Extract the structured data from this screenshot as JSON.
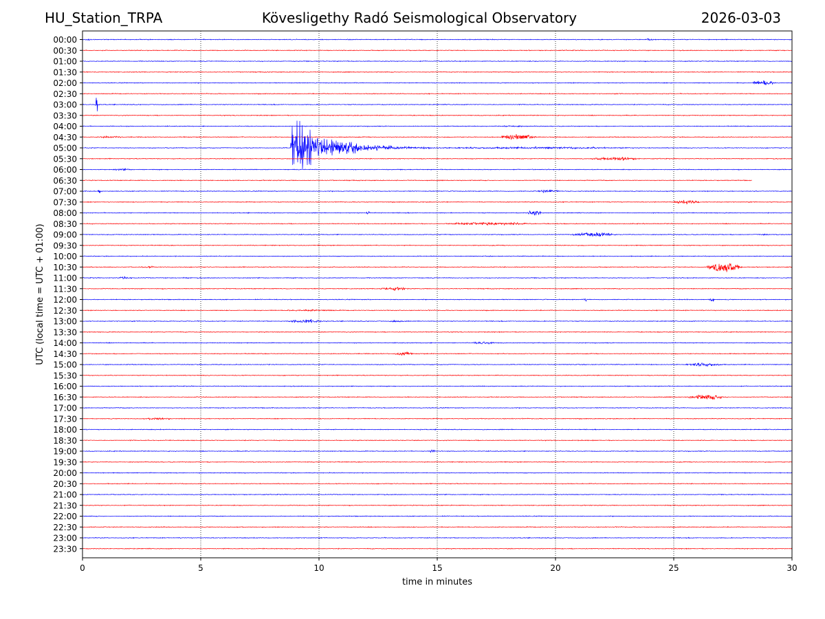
{
  "header": {
    "station": "HU_Station_TRPA",
    "observatory": "Kövesligethy Radó Seismological Observatory",
    "date": "2026-03-03"
  },
  "chart_data": {
    "type": "line",
    "title": "Kövesligethy Radó Seismological Observatory",
    "xlabel": "time in minutes",
    "ylabel": "UTC (local time = UTC + 01:00)",
    "xlim": [
      0,
      30
    ],
    "xticks": [
      0,
      5,
      10,
      15,
      20,
      25,
      30
    ],
    "grid": "vertical dotted at each x tick",
    "colors": {
      "even_rows": "#0000ff",
      "odd_rows": "#ff0000"
    },
    "rows": [
      "00:00",
      "00:30",
      "01:00",
      "01:30",
      "02:00",
      "02:30",
      "03:00",
      "03:30",
      "04:00",
      "04:30",
      "05:00",
      "05:30",
      "06:00",
      "06:30",
      "07:00",
      "07:30",
      "08:00",
      "08:30",
      "09:00",
      "09:30",
      "10:00",
      "10:30",
      "11:00",
      "11:30",
      "12:00",
      "12:30",
      "13:00",
      "13:30",
      "14:00",
      "14:30",
      "15:00",
      "15:30",
      "16:00",
      "16:30",
      "17:00",
      "17:30",
      "18:00",
      "18:30",
      "19:00",
      "19:30",
      "20:00",
      "20:30",
      "21:00",
      "21:30",
      "22:00",
      "22:30",
      "23:00",
      "23:30"
    ],
    "row_end_minutes": {
      "06:30": 28.3
    },
    "events": [
      {
        "row": "00:00",
        "start": 0.1,
        "duration": 0.5,
        "amp": 0.2
      },
      {
        "row": "00:00",
        "start": 23.8,
        "duration": 0.6,
        "amp": 0.18
      },
      {
        "row": "02:00",
        "start": 28.3,
        "duration": 1.7,
        "amp": 0.55
      },
      {
        "row": "03:00",
        "start": 0.55,
        "duration": 0.15,
        "amp": 2.5
      },
      {
        "row": "04:00",
        "start": 17.5,
        "duration": 2.0,
        "amp": 0.12
      },
      {
        "row": "04:30",
        "start": 17.7,
        "duration": 2.6,
        "amp": 0.6
      },
      {
        "row": "04:30",
        "start": 0.5,
        "duration": 2.0,
        "amp": 0.12
      },
      {
        "row": "05:00",
        "start": 8.8,
        "duration": 6.0,
        "amp": 9.0
      },
      {
        "row": "05:00",
        "start": 14.8,
        "duration": 15.0,
        "amp": 0.15
      },
      {
        "row": "05:30",
        "start": 21.5,
        "duration": 3.6,
        "amp": 0.35
      },
      {
        "row": "06:00",
        "start": 1.3,
        "duration": 1.4,
        "amp": 0.12
      },
      {
        "row": "07:00",
        "start": 0.65,
        "duration": 0.2,
        "amp": 0.5
      },
      {
        "row": "07:00",
        "start": 19.2,
        "duration": 1.8,
        "amp": 0.3
      },
      {
        "row": "07:30",
        "start": 25.0,
        "duration": 2.0,
        "amp": 0.35
      },
      {
        "row": "08:00",
        "start": 12.0,
        "duration": 0.25,
        "amp": 0.5
      },
      {
        "row": "08:00",
        "start": 18.8,
        "duration": 1.2,
        "amp": 0.45
      },
      {
        "row": "08:30",
        "start": 15.3,
        "duration": 6.8,
        "amp": 0.25
      },
      {
        "row": "09:00",
        "start": 20.7,
        "duration": 3.2,
        "amp": 0.45
      },
      {
        "row": "09:00",
        "start": 28.5,
        "duration": 1.0,
        "amp": 0.12
      },
      {
        "row": "10:30",
        "start": 26.4,
        "duration": 2.6,
        "amp": 1.2
      },
      {
        "row": "10:30",
        "start": 2.5,
        "duration": 1.0,
        "amp": 0.15
      },
      {
        "row": "11:00",
        "start": 1.5,
        "duration": 1.0,
        "amp": 0.2
      },
      {
        "row": "11:00",
        "start": 4.2,
        "duration": 0.6,
        "amp": 0.15
      },
      {
        "row": "11:30",
        "start": 12.5,
        "duration": 2.2,
        "amp": 0.3
      },
      {
        "row": "12:00",
        "start": 21.2,
        "duration": 0.2,
        "amp": 0.45
      },
      {
        "row": "12:00",
        "start": 26.5,
        "duration": 0.4,
        "amp": 0.45
      },
      {
        "row": "12:30",
        "start": 8.5,
        "duration": 4.0,
        "amp": 0.12
      },
      {
        "row": "13:00",
        "start": 8.7,
        "duration": 2.5,
        "amp": 0.45
      },
      {
        "row": "13:00",
        "start": 13.0,
        "duration": 1.0,
        "amp": 0.2
      },
      {
        "row": "14:00",
        "start": 16.5,
        "duration": 1.8,
        "amp": 0.25
      },
      {
        "row": "14:30",
        "start": 13.2,
        "duration": 1.3,
        "amp": 0.45
      },
      {
        "row": "15:00",
        "start": 25.5,
        "duration": 2.8,
        "amp": 0.35
      },
      {
        "row": "16:30",
        "start": 25.6,
        "duration": 3.0,
        "amp": 0.5
      },
      {
        "row": "17:30",
        "start": 2.7,
        "duration": 1.8,
        "amp": 0.2
      },
      {
        "row": "19:00",
        "start": 14.6,
        "duration": 0.6,
        "amp": 0.2
      }
    ]
  }
}
